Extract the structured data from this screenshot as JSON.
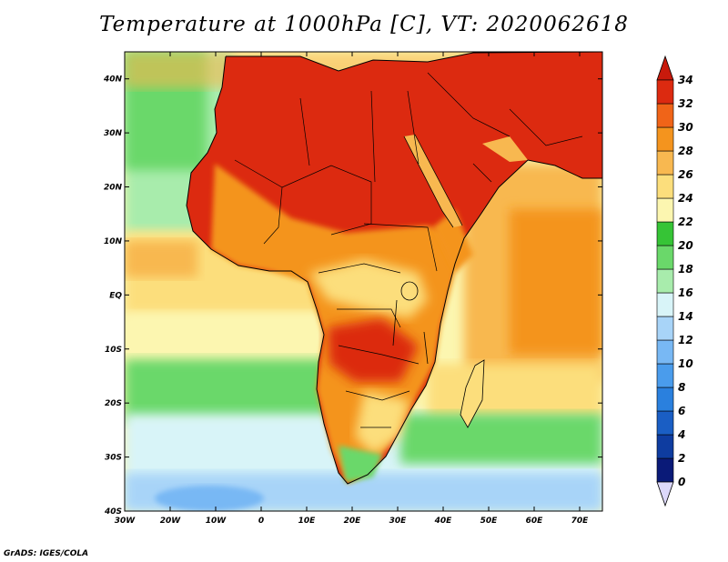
{
  "title": "Temperature at 1000hPa [C], VT: 2020062618",
  "credit": "GrADS: IGES/COLA",
  "map": {
    "projection": "lat-lon",
    "lon_range": [
      -30,
      75
    ],
    "lat_range": [
      -40,
      45
    ],
    "x_ticks": [
      "30W",
      "20W",
      "10W",
      "0",
      "10E",
      "20E",
      "30E",
      "40E",
      "50E",
      "60E",
      "70E"
    ],
    "y_ticks": [
      "40N",
      "30N",
      "20N",
      "10N",
      "EQ",
      "10S",
      "20S",
      "30S",
      "40S"
    ]
  },
  "colorbar": {
    "levels": [
      "0",
      "2",
      "4",
      "6",
      "8",
      "10",
      "12",
      "14",
      "16",
      "18",
      "20",
      "22",
      "24",
      "26",
      "28",
      "30",
      "32",
      "34"
    ],
    "colors": [
      "#dcd8fa",
      "#0a1a78",
      "#0e3ca0",
      "#1a5ec4",
      "#2a80de",
      "#4a9cec",
      "#78b8f4",
      "#a8d4f8",
      "#d8f4f8",
      "#a8ecac",
      "#6ad86a",
      "#36c436",
      "#fcf6b0",
      "#fcde7c",
      "#f8b850",
      "#f4941e",
      "#f06418",
      "#dc2a10",
      "#c81a0c"
    ]
  },
  "colors": {
    "ocean_north": "#a8ecac",
    "ocean_equatorial": "#fcde7c",
    "ocean_south_band": "#6ad86a",
    "ocean_far_south": "#d8f4f8",
    "land_hot": "#dc2a10",
    "land_warm": "#f4941e",
    "land_mild": "#fcde7c",
    "coast_line": "#000000"
  }
}
